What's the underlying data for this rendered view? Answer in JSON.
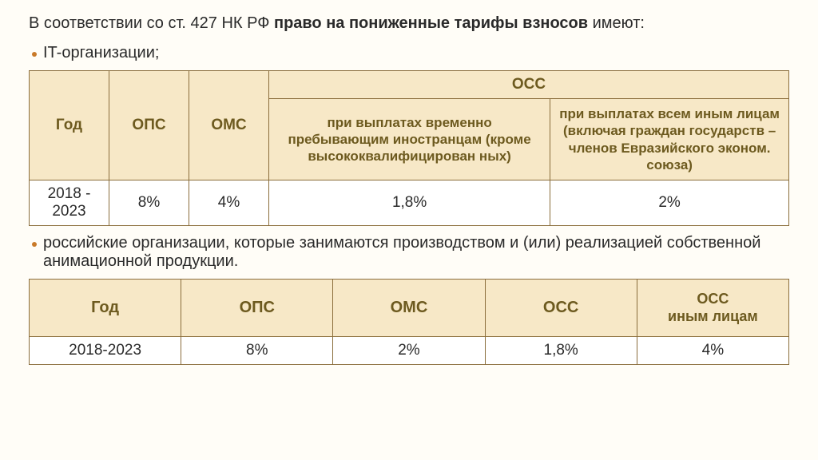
{
  "intro": {
    "prefix": "В соответствии со ст. 427 НК РФ ",
    "bold": "право на пониженные тарифы взносов",
    "suffix": " имеют:"
  },
  "bullet1": "IT-организации;",
  "bullet2": "российские организации, которые занимаются производством и (или) реализацией собственной анимационной продукции.",
  "table1": {
    "headers": {
      "year": "Год",
      "ops": "ОПС",
      "oms": "ОМС",
      "ocs": "ОСС",
      "ocs_sub1": "при выплатах временно пребывающим иностранцам (кроме высококвалифицирован ных)",
      "ocs_sub2": "при выплатах всем иным лицам (включая граждан государств – членов Евразийского эконом. союза)"
    },
    "row": {
      "year": "2018 - 2023",
      "ops": "8%",
      "oms": "4%",
      "ocs1": "1,8%",
      "ocs2": "2%"
    },
    "col_widths": {
      "year": 110,
      "ops": 90,
      "oms": 90
    },
    "header_bg": "#f7e8c7",
    "header_fg": "#6d5a1f",
    "border_color": "#8a6d3b"
  },
  "table2": {
    "headers": {
      "year": "Год",
      "ops": "ОПС",
      "oms": "ОМС",
      "ocs": "ОСС",
      "ocs_other_line1": "ОСС",
      "ocs_other_line2": "иным лицам"
    },
    "row": {
      "year": "2018-2023",
      "ops": "8%",
      "oms": "2%",
      "ocs": "1,8%",
      "ocs_other": "4%"
    },
    "header_bg": "#f7e8c7",
    "header_fg": "#6d5a1f",
    "border_color": "#8a6d3b"
  },
  "colors": {
    "page_bg": "#fffdf7",
    "bullet": "#c97a2a",
    "text": "#2a2a2a"
  },
  "fontsize": {
    "body": 18,
    "intro": 20,
    "th": 19,
    "td": 19,
    "sub_th": 17
  }
}
